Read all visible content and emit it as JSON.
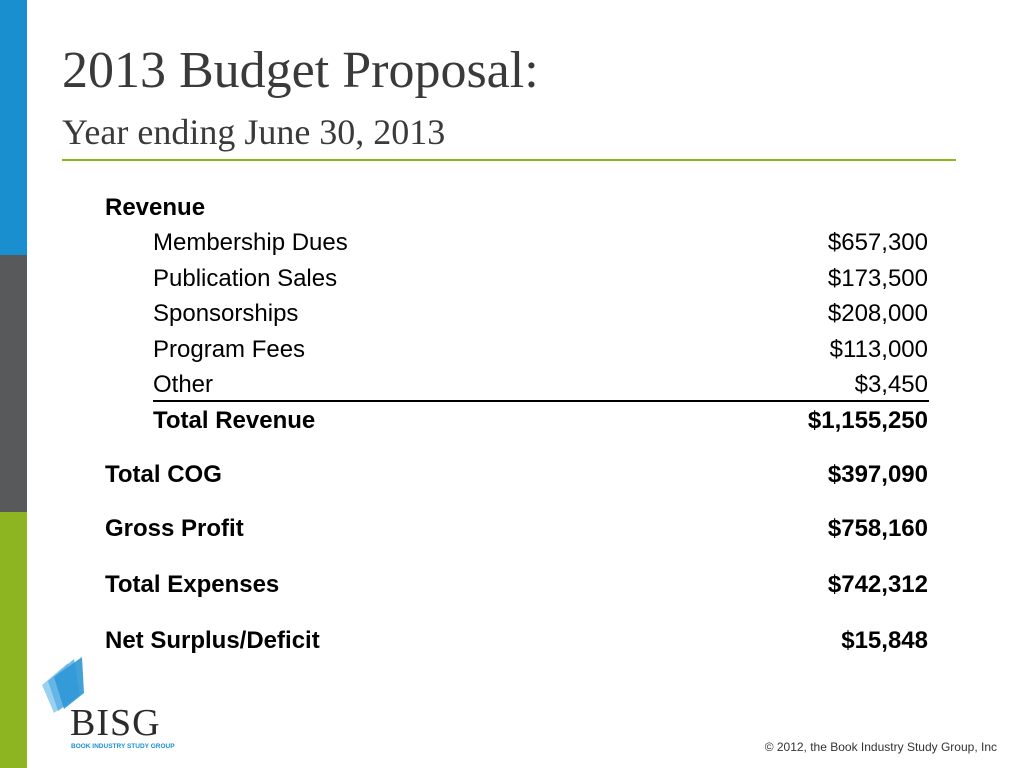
{
  "slide": {
    "title": "2013 Budget Proposal:",
    "subtitle": "Year ending June 30, 2013"
  },
  "colors": {
    "sidebar_blue": "#1a8fd0",
    "sidebar_gray": "#58595b",
    "sidebar_green": "#8cb521",
    "title_rule": "#8cb521",
    "logo_blue": "#4aa6dd"
  },
  "revenue": {
    "heading": "Revenue",
    "items": [
      {
        "label": "Membership Dues",
        "value": "$657,300"
      },
      {
        "label": "Publication Sales",
        "value": "$173,500"
      },
      {
        "label": "Sponsorships",
        "value": "$208,000"
      },
      {
        "label": "Program Fees",
        "value": "$113,000"
      },
      {
        "label": "Other",
        "value": "$3,450"
      }
    ],
    "total_label": "Total Revenue",
    "total_value": "$1,155,250"
  },
  "summary": [
    {
      "label": "Total COG",
      "value": "$397,090"
    },
    {
      "label": "Gross Profit",
      "value": "$758,160"
    },
    {
      "label": "Total Expenses",
      "value": "$742,312"
    },
    {
      "label": "Net Surplus/Deficit",
      "value": "$15,848"
    }
  ],
  "logo": {
    "name": "BISG",
    "tagline": "BOOK INDUSTRY STUDY GROUP"
  },
  "footer": {
    "copyright": "© 2012, the Book Industry Study Group, Inc"
  }
}
